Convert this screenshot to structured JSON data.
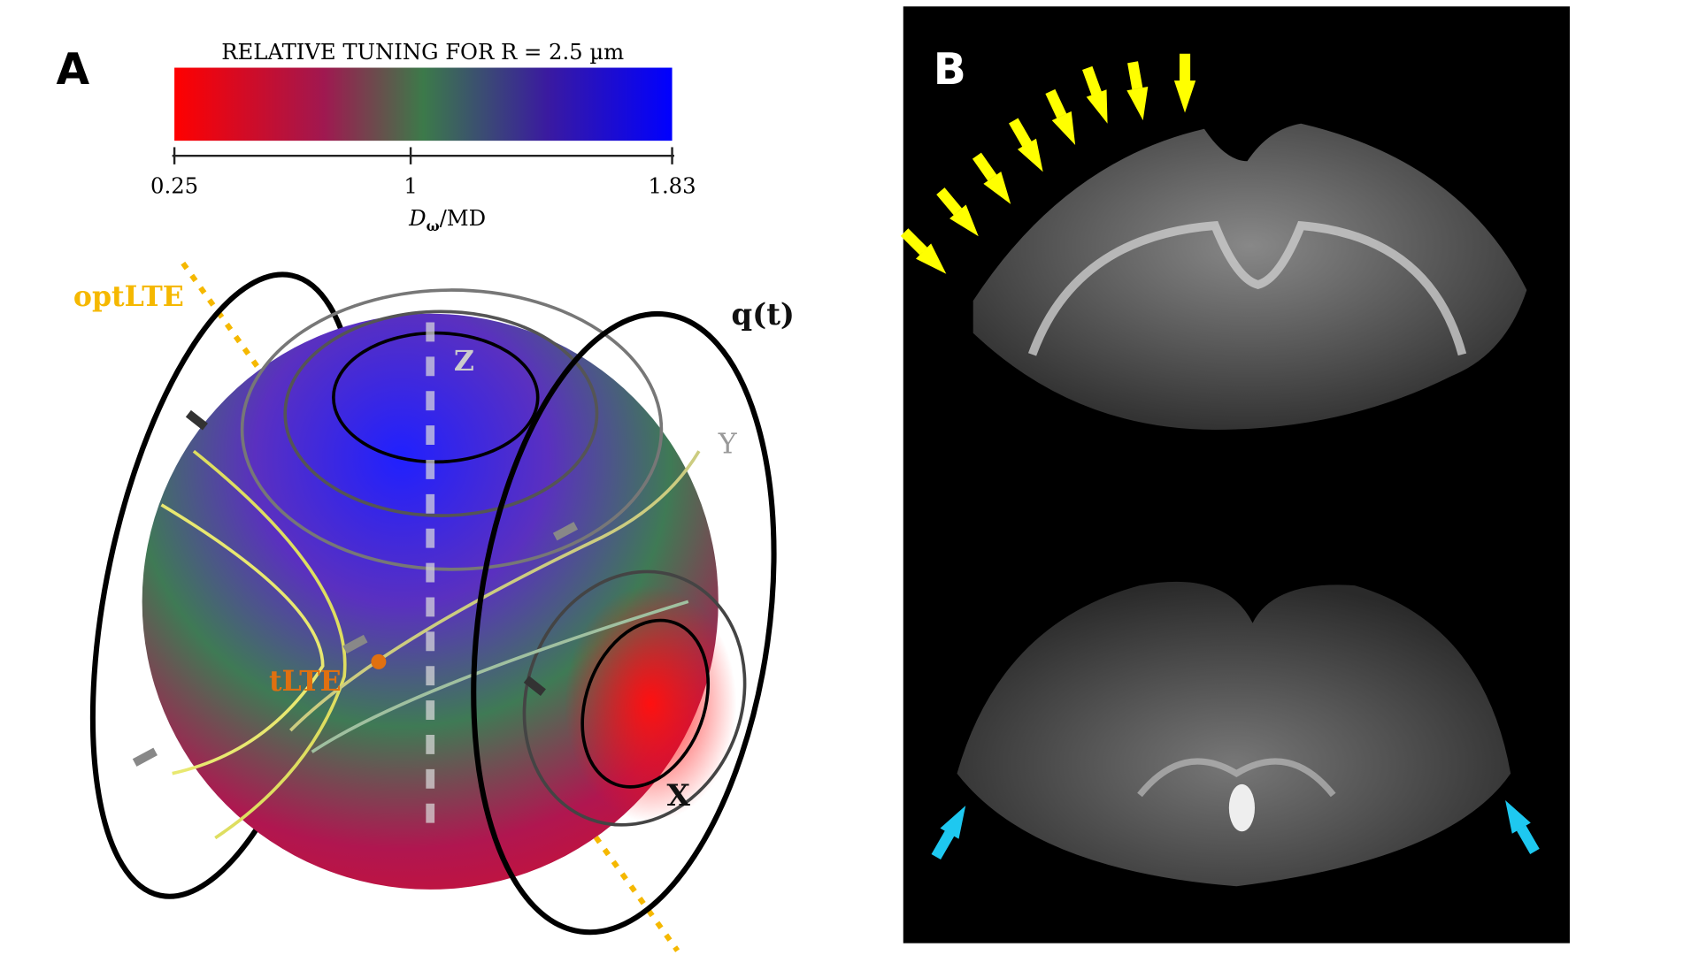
{
  "panel_a": {
    "label": "A",
    "colorbar": {
      "title": "RELATIVE TUNING FOR R = 2.5 µm",
      "lim": [
        0.25,
        1.83
      ],
      "ticks": [
        0.25,
        1,
        1.83
      ],
      "axis_label": {
        "symbol": "D",
        "subscript": "ω",
        "rest": "/MD"
      }
    },
    "annotations": {
      "optlte": "optLTE",
      "tlte": "tLTE",
      "q": "q(t)",
      "z": "Z",
      "y": "Y",
      "x": "X"
    }
  },
  "panel_b": {
    "label": "B"
  }
}
